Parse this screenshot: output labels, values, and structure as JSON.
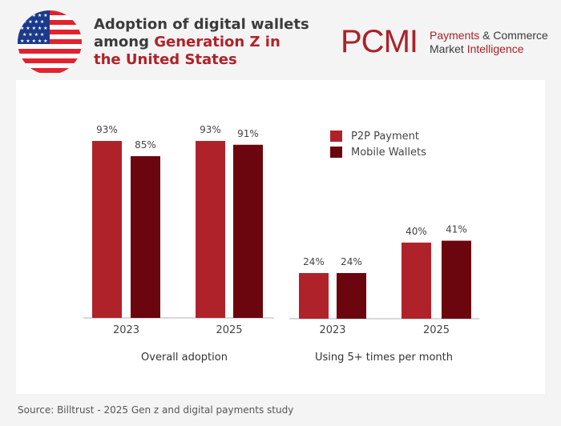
{
  "header": {
    "title_part1": "Adoption of digital wallets among ",
    "title_highlight": "Generation Z in the United States"
  },
  "logo": {
    "mark": "PCMI",
    "line1_a": "Payments",
    "line1_b": " & Commerce",
    "line2_a": "Market ",
    "line2_b": "Intelligence"
  },
  "flag_icon": "us-flag-icon",
  "colors": {
    "p2p": "#b0222a",
    "mobile": "#6b050e",
    "accent": "#b0222a"
  },
  "chart_data": [
    {
      "type": "bar",
      "title": "Overall adoption",
      "categories": [
        "2023",
        "2025"
      ],
      "series": [
        {
          "name": "P2P Payment",
          "values": [
            93,
            93
          ]
        },
        {
          "name": "Mobile Wallets",
          "values": [
            85,
            91
          ]
        }
      ],
      "data_labels": [
        [
          "93%",
          "93%"
        ],
        [
          "85%",
          "91%"
        ]
      ],
      "ylim": [
        0,
        100
      ],
      "grid": false,
      "legend": "top-right"
    },
    {
      "type": "bar",
      "title": "Using 5+ times per month",
      "categories": [
        "2023",
        "2025"
      ],
      "series": [
        {
          "name": "P2P Payment",
          "values": [
            24,
            40
          ]
        },
        {
          "name": "Mobile Wallets",
          "values": [
            24,
            41
          ]
        }
      ],
      "data_labels": [
        [
          "24%",
          "40%"
        ],
        [
          "24%",
          "41%"
        ]
      ],
      "ylim": [
        0,
        100
      ],
      "grid": false
    }
  ],
  "legend": [
    "P2P Payment",
    "Mobile Wallets"
  ],
  "source": "Source: Billtrust - 2025 Gen z and digital payments study"
}
